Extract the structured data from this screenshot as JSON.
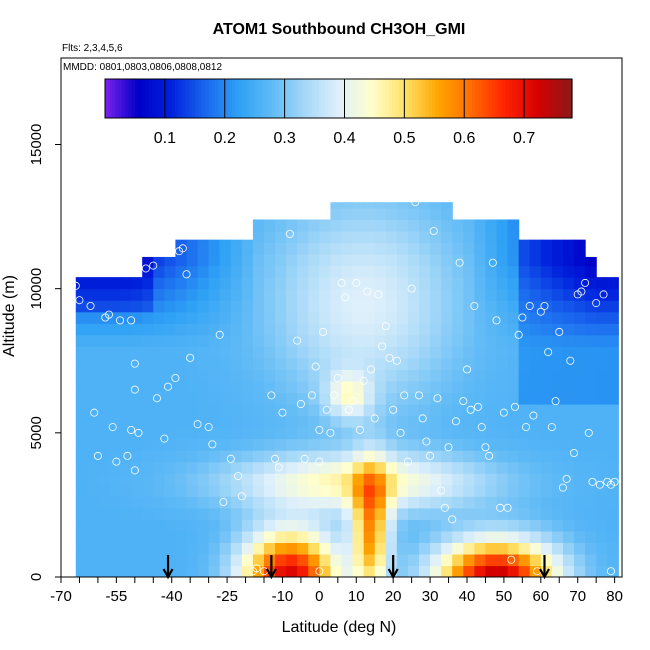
{
  "chart_data": {
    "type": "heatmap",
    "title": "ATOM1 Southbound CH3OH_GMI",
    "annotations": {
      "flights": "Flts: 2,3,4,5,6",
      "dates": "MMDD: 0801,0803,0806,0808,0812"
    },
    "xlabel": "Latitude (deg N)",
    "ylabel": "Altitude (m)",
    "xlim": [
      -70,
      82
    ],
    "ylim": [
      0,
      18000
    ],
    "x_ticks": [
      -70,
      -55,
      -40,
      -25,
      -10,
      0,
      10,
      20,
      30,
      40,
      50,
      60,
      70,
      80
    ],
    "x_tick_labels": [
      "-70",
      "-55",
      "-40",
      "-25",
      "-10",
      "0",
      "10",
      "20",
      "30",
      "40",
      "50",
      "60",
      "70",
      "80"
    ],
    "y_ticks": [
      0,
      5000,
      10000,
      15000
    ],
    "y_tick_labels": [
      "0",
      "5000",
      "10000",
      "15000"
    ],
    "colorbar": {
      "range": [
        0.0,
        0.78
      ],
      "ticks": [
        0.1,
        0.2,
        0.3,
        0.4,
        0.5,
        0.6,
        0.7
      ],
      "tick_labels": [
        "0.1",
        "0.2",
        "0.3",
        "0.4",
        "0.5",
        "0.6",
        "0.7"
      ],
      "colors": [
        "#7b22ee",
        "#0000c8",
        "#0022dd",
        "#1a66ee",
        "#2ea1f5",
        "#5fbaf6",
        "#a5d8f8",
        "#dff0fb",
        "#ffffcc",
        "#ffe066",
        "#ffa500",
        "#ff6a00",
        "#ff2200",
        "#d40000",
        "#8b1a1a"
      ]
    },
    "columns": [
      {
        "lat": -68,
        "top": 10400
      },
      {
        "lat": -59,
        "top": 10400
      },
      {
        "lat": -50,
        "top": 11100
      },
      {
        "lat": -40,
        "top": 11700
      },
      {
        "lat": -30,
        "top": 11700
      },
      {
        "lat": -20,
        "top": 12400
      },
      {
        "lat": -10,
        "top": 12400
      },
      {
        "lat": 0,
        "top": 12400
      },
      {
        "lat": 3,
        "top": 13000
      },
      {
        "lat": 30,
        "top": 13000
      },
      {
        "lat": 35,
        "top": 12400
      },
      {
        "lat": 46,
        "top": 12400
      },
      {
        "lat": 52,
        "top": 11700
      },
      {
        "lat": 62,
        "top": 11700
      },
      {
        "lat": 70,
        "top": 11100
      },
      {
        "lat": 75,
        "top": 10400
      },
      {
        "lat": 79,
        "top": 10000
      }
    ],
    "flight_obs": [
      [
        -68,
        200
      ],
      [
        -68,
        5800
      ],
      [
        -68,
        5200
      ],
      [
        -67,
        10100
      ],
      [
        -66,
        10100
      ],
      [
        -65,
        9600
      ],
      [
        -62,
        9400
      ],
      [
        -61,
        5700
      ],
      [
        -60,
        4200
      ],
      [
        -58,
        9000
      ],
      [
        -57,
        9100
      ],
      [
        -56,
        5200
      ],
      [
        -55,
        4000
      ],
      [
        -54,
        8900
      ],
      [
        -52,
        4200
      ],
      [
        -51,
        5100
      ],
      [
        -51,
        8900
      ],
      [
        -50,
        3700
      ],
      [
        -50,
        7400
      ],
      [
        -50,
        6500
      ],
      [
        -49,
        5000
      ],
      [
        -48,
        11500
      ],
      [
        -47,
        10700
      ],
      [
        -45,
        10800
      ],
      [
        -44,
        6200
      ],
      [
        -42,
        4800
      ],
      [
        -41,
        6600
      ],
      [
        -39,
        6900
      ],
      [
        -38,
        11300
      ],
      [
        -37,
        11400
      ],
      [
        -36,
        10500
      ],
      [
        -35,
        7600
      ],
      [
        -33,
        5300
      ],
      [
        -30,
        5200
      ],
      [
        -29,
        4600
      ],
      [
        -27,
        8400
      ],
      [
        -26,
        2600
      ],
      [
        -25,
        11900
      ],
      [
        -24,
        4100
      ],
      [
        -22,
        3500
      ],
      [
        -21,
        2800
      ],
      [
        -18,
        200
      ],
      [
        -17,
        300
      ],
      [
        -15,
        200
      ],
      [
        -13,
        6300
      ],
      [
        -12,
        4100
      ],
      [
        -11,
        3800
      ],
      [
        -10,
        5700
      ],
      [
        -8,
        11900
      ],
      [
        -6,
        8200
      ],
      [
        -5,
        6000
      ],
      [
        -4,
        4100
      ],
      [
        -2,
        6300
      ],
      [
        -1,
        7300
      ],
      [
        0,
        4000
      ],
      [
        0,
        5100
      ],
      [
        0,
        200
      ],
      [
        1,
        8500
      ],
      [
        2,
        5800
      ],
      [
        3,
        5000
      ],
      [
        4,
        6300
      ],
      [
        5,
        6900
      ],
      [
        6,
        10200
      ],
      [
        7,
        9700
      ],
      [
        8,
        5800
      ],
      [
        9,
        6100
      ],
      [
        10,
        10200
      ],
      [
        11,
        5100
      ],
      [
        12,
        6800
      ],
      [
        13,
        9900
      ],
      [
        14,
        7200
      ],
      [
        15,
        5500
      ],
      [
        16,
        9800
      ],
      [
        17,
        8000
      ],
      [
        18,
        8700
      ],
      [
        19,
        7600
      ],
      [
        20,
        5800
      ],
      [
        21,
        7500
      ],
      [
        22,
        5000
      ],
      [
        23,
        6300
      ],
      [
        24,
        4000
      ],
      [
        25,
        10000
      ],
      [
        26,
        13000
      ],
      [
        27,
        6300
      ],
      [
        28,
        5500
      ],
      [
        29,
        4700
      ],
      [
        30,
        4200
      ],
      [
        31,
        12000
      ],
      [
        32,
        6200
      ],
      [
        33,
        3000
      ],
      [
        34,
        2400
      ],
      [
        35,
        4500
      ],
      [
        36,
        2000
      ],
      [
        37,
        5400
      ],
      [
        38,
        10900
      ],
      [
        39,
        6100
      ],
      [
        40,
        7200
      ],
      [
        41,
        5800
      ],
      [
        42,
        9400
      ],
      [
        43,
        5900
      ],
      [
        44,
        5200
      ],
      [
        45,
        4500
      ],
      [
        46,
        4200
      ],
      [
        47,
        10900
      ],
      [
        48,
        8900
      ],
      [
        49,
        2400
      ],
      [
        50,
        5700
      ],
      [
        51,
        2400
      ],
      [
        52,
        600
      ],
      [
        53,
        5900
      ],
      [
        54,
        8400
      ],
      [
        55,
        9000
      ],
      [
        56,
        5200
      ],
      [
        57,
        9400
      ],
      [
        58,
        5600
      ],
      [
        59,
        200
      ],
      [
        60,
        9200
      ],
      [
        61,
        9400
      ],
      [
        62,
        7800
      ],
      [
        63,
        5200
      ],
      [
        64,
        6100
      ],
      [
        65,
        8500
      ],
      [
        66,
        3100
      ],
      [
        67,
        3400
      ],
      [
        68,
        7500
      ],
      [
        69,
        4300
      ],
      [
        70,
        9800
      ],
      [
        71,
        9900
      ],
      [
        72,
        10200
      ],
      [
        73,
        5000
      ],
      [
        74,
        3300
      ],
      [
        75,
        9500
      ],
      [
        76,
        3200
      ],
      [
        77,
        9800
      ],
      [
        78,
        3300
      ],
      [
        79,
        3200
      ],
      [
        79,
        200
      ],
      [
        80,
        3300
      ]
    ],
    "arrows_lat": [
      -41,
      -13,
      20,
      61
    ]
  }
}
